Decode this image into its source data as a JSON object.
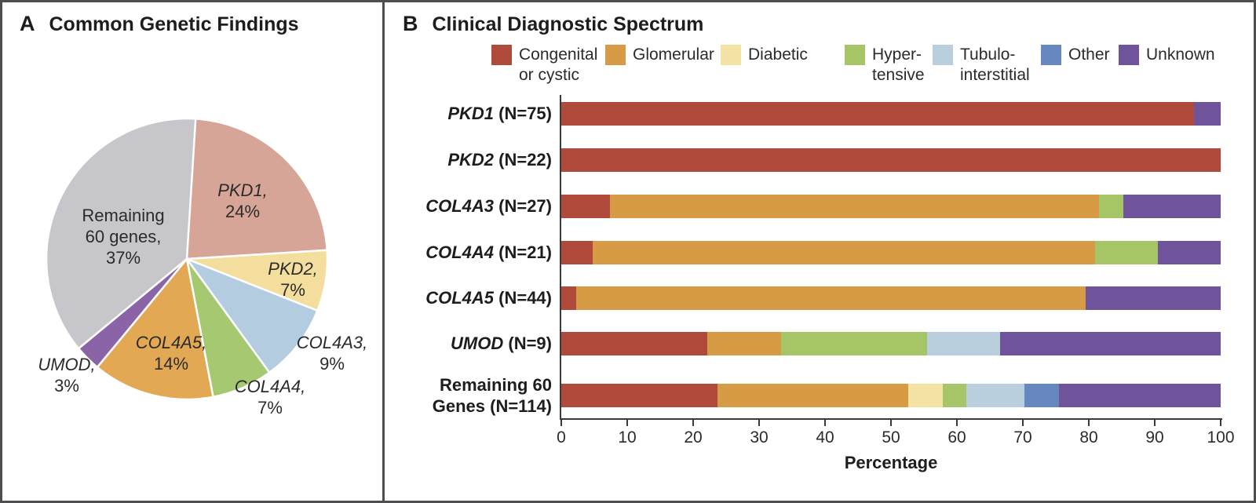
{
  "panelA": {
    "letter": "A",
    "title": "Common Genetic Findings"
  },
  "panelB": {
    "letter": "B",
    "title": "Clinical Diagnostic Spectrum"
  },
  "chart_data": [
    {
      "type": "pie",
      "title": "Common Genetic Findings",
      "start_angle_deg": 0,
      "direction": "clockwise",
      "slices": [
        {
          "label": "PKD1",
          "pct": 24,
          "color": "#D6A597",
          "line1": "PKD1,",
          "line2": "24%"
        },
        {
          "label": "PKD2",
          "pct": 7,
          "color": "#F3DE9E",
          "line1": "PKD2,",
          "line2": "7%"
        },
        {
          "label": "COL4A3",
          "pct": 9,
          "color": "#B4CCDF",
          "line1": "COL4A3,",
          "line2": "9%"
        },
        {
          "label": "COL4A4",
          "pct": 7,
          "color": "#A5C871",
          "line1": "COL4A4,",
          "line2": "7%"
        },
        {
          "label": "COL4A5",
          "pct": 14,
          "color": "#E3A853",
          "line1": "COL4A5,",
          "line2": "14%"
        },
        {
          "label": "UMOD",
          "pct": 3,
          "color": "#8B64A7",
          "line1": "UMOD,",
          "line2": "3%"
        },
        {
          "label": "Remaining 60 genes",
          "pct": 37,
          "color": "#C7C7CB",
          "line1": "Remaining",
          "line2": "60 genes,",
          "line3": "37%"
        }
      ]
    },
    {
      "type": "bar-stacked-horizontal",
      "title": "Clinical Diagnostic Spectrum",
      "xlabel": "Percentage",
      "xlim": [
        0,
        100
      ],
      "xticks": [
        0,
        10,
        20,
        30,
        40,
        50,
        60,
        70,
        80,
        90,
        100
      ],
      "legend_position": "top",
      "categories": [
        {
          "name": "Congenital or cystic",
          "legend_label": "Congenital\nor cystic",
          "color": "#B04B3C"
        },
        {
          "name": "Glomerular",
          "legend_label": "Glomerular",
          "color": "#D89B45"
        },
        {
          "name": "Diabetic",
          "legend_label": "Diabetic",
          "color": "#F5E3A6"
        },
        {
          "name": "Hypertensive",
          "legend_label": "Hyper-\ntensive",
          "color": "#A6C566"
        },
        {
          "name": "Tubulointerstitial",
          "legend_label": "Tubulo-\ninterstitial",
          "color": "#B9CFDE"
        },
        {
          "name": "Other",
          "legend_label": "Other",
          "color": "#6787C1"
        },
        {
          "name": "Unknown",
          "legend_label": "Unknown",
          "color": "#6F549B"
        }
      ],
      "rows": [
        {
          "gene": "PKD1",
          "rest": " (N=75)",
          "values": {
            "Congenital or cystic": 96,
            "Unknown": 4
          }
        },
        {
          "gene": "PKD2",
          "rest": " (N=22)",
          "values": {
            "Congenital or cystic": 100
          }
        },
        {
          "gene": "COL4A3",
          "rest": " (N=27)",
          "values": {
            "Congenital or cystic": 7.4,
            "Glomerular": 74.1,
            "Hypertensive": 3.7,
            "Unknown": 14.8
          }
        },
        {
          "gene": "COL4A4",
          "rest": " (N=21)",
          "values": {
            "Congenital or cystic": 4.8,
            "Glomerular": 76.2,
            "Hypertensive": 9.5,
            "Unknown": 9.5
          }
        },
        {
          "gene": "COL4A5",
          "rest": " (N=44)",
          "values": {
            "Congenital or cystic": 2.3,
            "Glomerular": 77.2,
            "Unknown": 20.5
          }
        },
        {
          "gene": "UMOD",
          "rest": " (N=9)",
          "values": {
            "Congenital or cystic": 22.2,
            "Glomerular": 11.1,
            "Hypertensive": 22.2,
            "Tubulointerstitial": 11.1,
            "Unknown": 33.4
          }
        },
        {
          "gene": "",
          "rest": "Remaining 60\nGenes (N=114)",
          "values": {
            "Congenital or cystic": 23.7,
            "Glomerular": 28.9,
            "Diabetic": 5.3,
            "Hypertensive": 3.5,
            "Tubulointerstitial": 8.8,
            "Other": 5.3,
            "Unknown": 24.5
          }
        }
      ]
    }
  ]
}
